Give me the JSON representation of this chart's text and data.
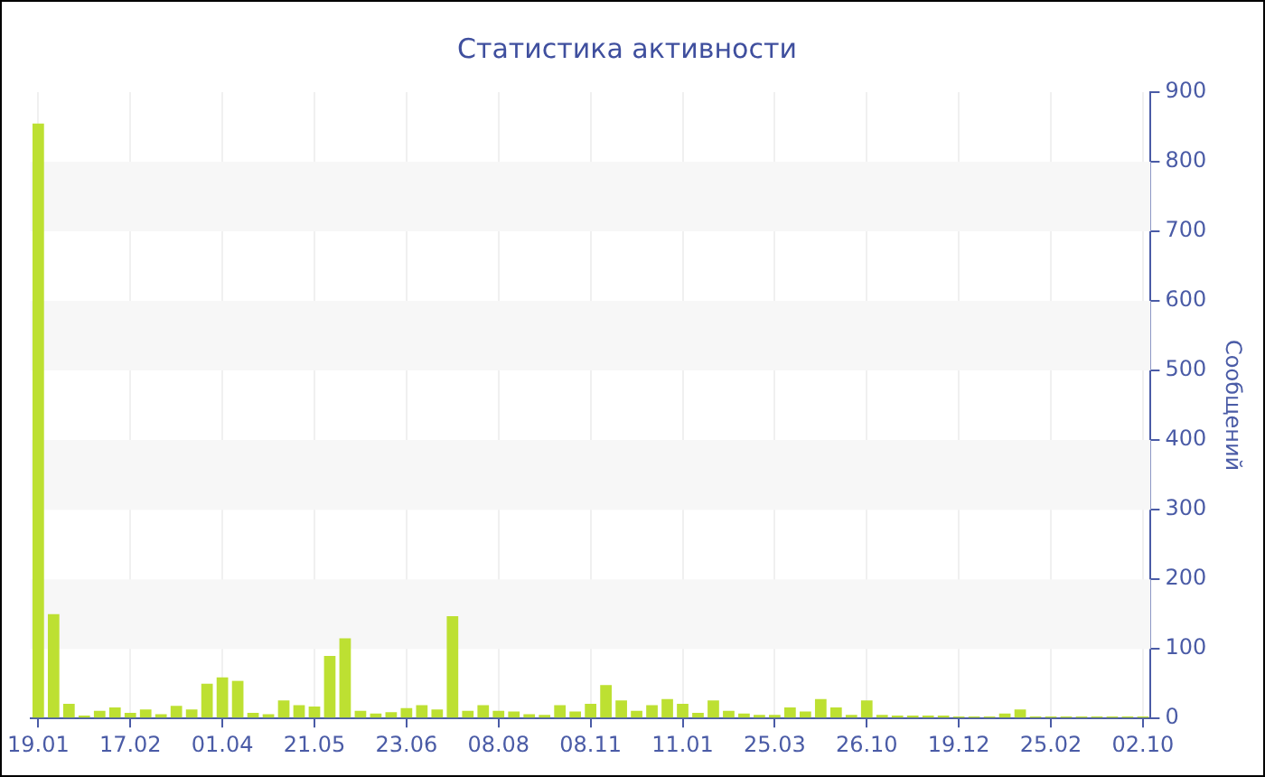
{
  "chart_data": {
    "type": "bar",
    "title": "Статистика активности",
    "ylabel": "Сообщений",
    "categories": [
      "19.01",
      null,
      null,
      null,
      null,
      null,
      "17.02",
      null,
      null,
      null,
      null,
      null,
      "01.04",
      null,
      null,
      null,
      null,
      null,
      "21.05",
      null,
      null,
      null,
      null,
      null,
      "23.06",
      null,
      null,
      null,
      null,
      null,
      "08.08",
      null,
      null,
      null,
      null,
      null,
      "08.11",
      null,
      null,
      null,
      null,
      null,
      "11.01",
      null,
      null,
      null,
      null,
      null,
      "25.03",
      null,
      null,
      null,
      null,
      null,
      "26.10",
      null,
      null,
      null,
      null,
      null,
      "19.12",
      null,
      null,
      null,
      null,
      null,
      "25.02",
      null,
      null,
      null,
      null,
      null,
      "02.10"
    ],
    "values": [
      855,
      150,
      21,
      4,
      11,
      16,
      8,
      13,
      6,
      18,
      13,
      50,
      59,
      54,
      8,
      6,
      26,
      19,
      17,
      90,
      115,
      11,
      7,
      9,
      15,
      19,
      13,
      147,
      11,
      19,
      11,
      10,
      6,
      5,
      19,
      10,
      21,
      48,
      26,
      11,
      19,
      28,
      21,
      8,
      26,
      11,
      7,
      5,
      5,
      16,
      10,
      28,
      16,
      5,
      26,
      5,
      4,
      4,
      4,
      4,
      3,
      3,
      3,
      7,
      13,
      3,
      3,
      3,
      3,
      3,
      3,
      3,
      3
    ],
    "color": "#bde032",
    "ylim": [
      0,
      900
    ],
    "yticks": [
      0,
      100,
      200,
      300,
      400,
      500,
      600,
      700,
      800,
      900
    ],
    "grid": true
  }
}
